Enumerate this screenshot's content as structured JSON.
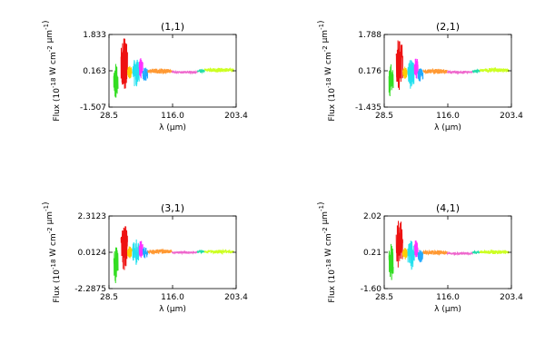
{
  "figure": {
    "background": "#ffffff",
    "series_colors": [
      "#33dd22",
      "#ee1111",
      "#ffcc00",
      "#22e0ee",
      "#ff33ff",
      "#22aaff",
      "#ff9933",
      "#ee66cc",
      "#22ddaa",
      "#ccff22"
    ]
  },
  "chart_data": [
    {
      "id": "1-1",
      "type": "line",
      "title": "(1,1)",
      "xlabel": "λ (μm)",
      "ylabel": "Flux (10^-18 W cm^-2 μm^-1)",
      "xlim": [
        28.5,
        203.4
      ],
      "ylim": [
        -1.507,
        1.833
      ],
      "xticks": [
        "28.5",
        "116.0",
        "203.4"
      ],
      "yticks": [
        "-1.507",
        "0.163",
        "1.833"
      ],
      "series": [
        {
          "x_range": [
            35,
            41
          ],
          "baseline": -0.3,
          "amp": 0.9
        },
        {
          "x_range": [
            45,
            54
          ],
          "baseline": 0.5,
          "amp": 1.25
        },
        {
          "x_range": [
            54,
            60
          ],
          "baseline": 0.1,
          "amp": 0.3
        },
        {
          "x_range": [
            61,
            70
          ],
          "baseline": 0.05,
          "amp": 0.7
        },
        {
          "x_range": [
            70,
            75
          ],
          "baseline": 0.3,
          "amp": 0.5
        },
        {
          "x_range": [
            75,
            82
          ],
          "baseline": 0.0,
          "amp": 0.35
        },
        {
          "x_range": [
            82,
            115
          ],
          "baseline": 0.15,
          "amp": 0.12
        },
        {
          "x_range": [
            115,
            150
          ],
          "baseline": 0.1,
          "amp": 0.06
        },
        {
          "x_range": [
            150,
            160
          ],
          "baseline": 0.15,
          "amp": 0.08
        },
        {
          "x_range": [
            160,
            200
          ],
          "baseline": 0.2,
          "amp": 0.1
        }
      ]
    },
    {
      "id": "2-1",
      "type": "line",
      "title": "(2,1)",
      "xlabel": "λ (μm)",
      "ylabel": "Flux (10^-18 W cm^-2 μm^-1)",
      "xlim": [
        28.5,
        203.4
      ],
      "ylim": [
        -1.435,
        1.788
      ],
      "xticks": [
        "28.5",
        "116.0",
        "203.4"
      ],
      "yticks": [
        "-1.435",
        "0.176",
        "1.788"
      ],
      "series": [
        {
          "x_range": [
            35,
            41
          ],
          "baseline": -0.3,
          "amp": 0.85
        },
        {
          "x_range": [
            45,
            54
          ],
          "baseline": 0.5,
          "amp": 1.2
        },
        {
          "x_range": [
            54,
            60
          ],
          "baseline": 0.1,
          "amp": 0.3
        },
        {
          "x_range": [
            61,
            70
          ],
          "baseline": 0.05,
          "amp": 0.7
        },
        {
          "x_range": [
            70,
            75
          ],
          "baseline": 0.3,
          "amp": 0.5
        },
        {
          "x_range": [
            75,
            82
          ],
          "baseline": 0.0,
          "amp": 0.35
        },
        {
          "x_range": [
            82,
            115
          ],
          "baseline": 0.15,
          "amp": 0.12
        },
        {
          "x_range": [
            115,
            150
          ],
          "baseline": 0.12,
          "amp": 0.06
        },
        {
          "x_range": [
            150,
            160
          ],
          "baseline": 0.15,
          "amp": 0.08
        },
        {
          "x_range": [
            160,
            200
          ],
          "baseline": 0.2,
          "amp": 0.1
        }
      ]
    },
    {
      "id": "3-1",
      "type": "line",
      "title": "(3,1)",
      "xlabel": "λ (μm)",
      "ylabel": "Flux (10^-18 W cm^-2 μm^-1)",
      "xlim": [
        28.5,
        203.4
      ],
      "ylim": [
        -2.2875,
        2.3123
      ],
      "xticks": [
        "28.5",
        "116.0",
        "203.4"
      ],
      "yticks": [
        "-2.2875",
        "0.0124",
        "2.3123"
      ],
      "series": [
        {
          "x_range": [
            35,
            41
          ],
          "baseline": -0.8,
          "amp": 1.2
        },
        {
          "x_range": [
            45,
            54
          ],
          "baseline": 0.4,
          "amp": 1.6
        },
        {
          "x_range": [
            54,
            60
          ],
          "baseline": 0.0,
          "amp": 0.4
        },
        {
          "x_range": [
            61,
            70
          ],
          "baseline": 0.0,
          "amp": 0.9
        },
        {
          "x_range": [
            70,
            75
          ],
          "baseline": 0.2,
          "amp": 0.6
        },
        {
          "x_range": [
            75,
            82
          ],
          "baseline": 0.0,
          "amp": 0.4
        },
        {
          "x_range": [
            82,
            115
          ],
          "baseline": 0.05,
          "amp": 0.15
        },
        {
          "x_range": [
            115,
            150
          ],
          "baseline": 0.0,
          "amp": 0.08
        },
        {
          "x_range": [
            150,
            160
          ],
          "baseline": 0.05,
          "amp": 0.1
        },
        {
          "x_range": [
            160,
            200
          ],
          "baseline": 0.05,
          "amp": 0.12
        }
      ]
    },
    {
      "id": "4-1",
      "type": "line",
      "title": "(4,1)",
      "xlabel": "λ (μm)",
      "ylabel": "Flux (10^-18 W cm^-2 μm^-1)",
      "xlim": [
        28.5,
        203.4
      ],
      "ylim": [
        -1.6,
        2.02
      ],
      "xticks": [
        "28.5",
        "116.0",
        "203.4"
      ],
      "yticks": [
        "-1.60",
        "0.21",
        "2.02"
      ],
      "series": [
        {
          "x_range": [
            35,
            41
          ],
          "baseline": -0.3,
          "amp": 0.95
        },
        {
          "x_range": [
            45,
            54
          ],
          "baseline": 0.6,
          "amp": 1.3
        },
        {
          "x_range": [
            54,
            60
          ],
          "baseline": 0.15,
          "amp": 0.3
        },
        {
          "x_range": [
            61,
            70
          ],
          "baseline": 0.1,
          "amp": 0.75
        },
        {
          "x_range": [
            70,
            75
          ],
          "baseline": 0.35,
          "amp": 0.5
        },
        {
          "x_range": [
            75,
            82
          ],
          "baseline": 0.05,
          "amp": 0.35
        },
        {
          "x_range": [
            82,
            115
          ],
          "baseline": 0.2,
          "amp": 0.12
        },
        {
          "x_range": [
            115,
            150
          ],
          "baseline": 0.15,
          "amp": 0.06
        },
        {
          "x_range": [
            150,
            160
          ],
          "baseline": 0.2,
          "amp": 0.08
        },
        {
          "x_range": [
            160,
            200
          ],
          "baseline": 0.22,
          "amp": 0.1
        }
      ]
    }
  ]
}
